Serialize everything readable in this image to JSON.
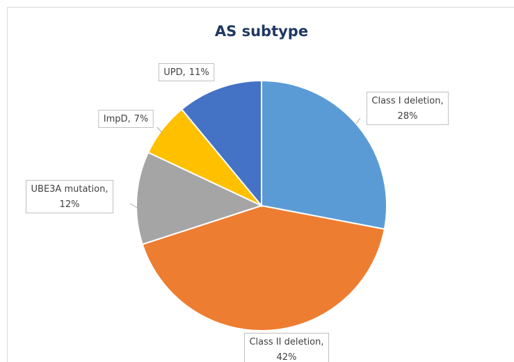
{
  "chart_data": {
    "type": "pie",
    "title": "AS subtype",
    "categories": [
      "Class I deletion,",
      "Class II deletion,",
      "UBE3A mutation,",
      "ImpD,",
      "UPD,"
    ],
    "values": [
      28,
      42,
      12,
      7,
      11
    ],
    "value_labels": [
      "28%",
      "42%",
      "12%",
      "7%",
      "11%"
    ],
    "colors": [
      "#5b9bd5",
      "#ed7d31",
      "#a5a5a5",
      "#ffc000",
      "#4472c4"
    ]
  }
}
